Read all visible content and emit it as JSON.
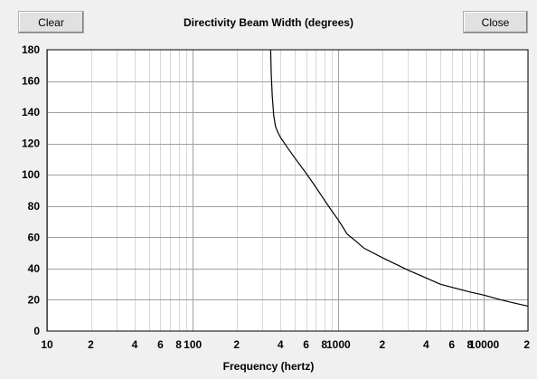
{
  "buttons": {
    "clear": "Clear",
    "close": "Close"
  },
  "chart_data": {
    "type": "line",
    "title": "Directivity Beam Width (degrees)",
    "xlabel": "Frequency (hertz)",
    "ylabel": "",
    "x_scale": "log",
    "xlim": [
      10,
      20000
    ],
    "ylim": [
      0,
      180
    ],
    "grid": true,
    "y_ticks": [
      "0",
      "20",
      "40",
      "60",
      "80",
      "100",
      "120",
      "140",
      "160",
      "180"
    ],
    "x_ticks": [
      {
        "value": 10,
        "label": "10"
      },
      {
        "value": 20,
        "label": "2"
      },
      {
        "value": 40,
        "label": "4"
      },
      {
        "value": 60,
        "label": "6"
      },
      {
        "value": 80,
        "label": "8"
      },
      {
        "value": 100,
        "label": "100"
      },
      {
        "value": 200,
        "label": "2"
      },
      {
        "value": 400,
        "label": "4"
      },
      {
        "value": 600,
        "label": "6"
      },
      {
        "value": 800,
        "label": "8"
      },
      {
        "value": 1000,
        "label": "1000"
      },
      {
        "value": 2000,
        "label": "2"
      },
      {
        "value": 4000,
        "label": "4"
      },
      {
        "value": 6000,
        "label": "6"
      },
      {
        "value": 8000,
        "label": "8"
      },
      {
        "value": 10000,
        "label": "10000"
      },
      {
        "value": 20000,
        "label": "2"
      }
    ],
    "series": [
      {
        "color": "#000000",
        "x": [
          343,
          346,
          352,
          360,
          370,
          385,
          400,
          450,
          500,
          600,
          700,
          800,
          900,
          1000,
          1150,
          1300,
          1500,
          2000,
          3000,
          4000,
          5000,
          6000,
          8000,
          10000,
          13000,
          16000,
          20000
        ],
        "y": [
          180,
          165,
          150,
          138,
          131,
          127,
          124,
          117,
          111,
          101,
          92,
          84,
          77,
          71,
          62,
          58,
          53,
          47,
          39,
          34,
          30,
          28,
          25,
          23,
          20,
          18,
          16
        ]
      }
    ]
  }
}
